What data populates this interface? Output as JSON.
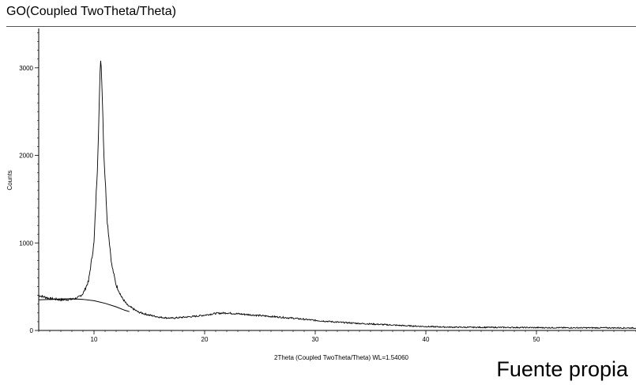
{
  "header": {
    "title": "GO(Coupled TwoTheta/Theta)"
  },
  "caption": "Fuente propia",
  "colors": {
    "line": "#000000",
    "background": "#ffffff"
  },
  "chart_data": {
    "type": "line",
    "title": "GO(Coupled TwoTheta/Theta)",
    "xlabel": "2Theta (Coupled TwoTheta/Theta) WL=1.54060",
    "ylabel": "Counts",
    "xlim": [
      5,
      59
    ],
    "ylim": [
      0,
      3450
    ],
    "x_ticks": [
      10,
      20,
      30,
      40,
      50
    ],
    "y_ticks": [
      0,
      1000,
      2000,
      3000
    ],
    "grid": false,
    "legend": "none",
    "series": [
      {
        "values": [
          [
            5,
            400
          ],
          [
            6,
            365
          ],
          [
            7,
            350
          ],
          [
            8,
            355
          ],
          [
            8.5,
            370
          ],
          [
            9,
            420
          ],
          [
            9.5,
            560
          ],
          [
            10,
            1000
          ],
          [
            10.3,
            1850
          ],
          [
            10.5,
            2700
          ],
          [
            10.6,
            3130
          ],
          [
            10.7,
            2900
          ],
          [
            10.9,
            2000
          ],
          [
            11.2,
            1250
          ],
          [
            11.6,
            750
          ],
          [
            12,
            520
          ],
          [
            12.5,
            380
          ],
          [
            13,
            290
          ],
          [
            14,
            210
          ],
          [
            15,
            175
          ],
          [
            16,
            150
          ],
          [
            17,
            140
          ],
          [
            18,
            150
          ],
          [
            19,
            160
          ],
          [
            20,
            175
          ],
          [
            21,
            195
          ],
          [
            22,
            200
          ],
          [
            23,
            190
          ],
          [
            24,
            180
          ],
          [
            25,
            170
          ],
          [
            26,
            160
          ],
          [
            28,
            140
          ],
          [
            30,
            115
          ],
          [
            32,
            95
          ],
          [
            34,
            80
          ],
          [
            36,
            68
          ],
          [
            38,
            55
          ],
          [
            40,
            45
          ],
          [
            42,
            38
          ],
          [
            44,
            36
          ],
          [
            46,
            35
          ],
          [
            48,
            34
          ],
          [
            50,
            32
          ],
          [
            52,
            31
          ],
          [
            54,
            30
          ],
          [
            56,
            30
          ],
          [
            59,
            28
          ]
        ]
      },
      {
        "values": [
          [
            5,
            350
          ],
          [
            6,
            355
          ],
          [
            7,
            360
          ],
          [
            8,
            362
          ],
          [
            9,
            355
          ],
          [
            10,
            340
          ],
          [
            11,
            310
          ],
          [
            12,
            270
          ],
          [
            12.8,
            230
          ],
          [
            13.2,
            215
          ]
        ]
      }
    ]
  }
}
